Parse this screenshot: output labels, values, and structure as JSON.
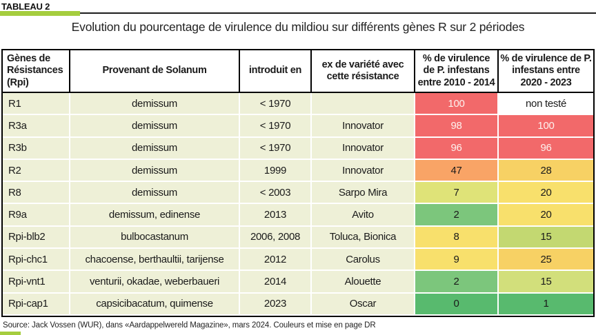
{
  "tag": "TABLEAU 2",
  "title": "Evolution du pourcentage de virulence du mildiou sur différents gènes R sur 2 périodes",
  "footer": "Source: Jack Vossen (WUR), dans «Aardappelwereld Magazine», mars 2024. Couleurs et mise en page DR",
  "colors": {
    "accent_green": "#a5cd3e",
    "row_bg": "#eef0d7",
    "rule_black": "#1c1c1c",
    "scale_red": "#f2696a",
    "scale_orange": "#f9a466",
    "scale_gold": "#f7d164",
    "scale_yellow": "#f8e06c",
    "scale_yellow_green": "#dfe378",
    "scale_green_light": "#7cc67c",
    "scale_green": "#58ba6e"
  },
  "table": {
    "headers": [
      {
        "label": "Gènes de Résistances (Rpi)"
      },
      {
        "label": "Provenant de Solanum"
      },
      {
        "label": "introduit en"
      },
      {
        "label": "ex de variété avec cette résistance"
      },
      {
        "label": "% de virulence de P. infestans entre 2010 - 2014"
      },
      {
        "label": "% de virulence de P. infestans entre 2020 - 2023"
      }
    ],
    "rows": [
      {
        "gene": "R1",
        "solanum": "demissum",
        "introduced": "< 1970",
        "variety": "",
        "v2010": {
          "text": "100",
          "bg": "#f2696a",
          "fg": "#fdf2ee"
        },
        "v2020": {
          "text": "non testé",
          "bg": "#ffffff",
          "fg": "#1a1a1a"
        }
      },
      {
        "gene": "R3a",
        "solanum": "demissum",
        "introduced": "< 1970",
        "variety": "Innovator",
        "v2010": {
          "text": "98",
          "bg": "#f2696a",
          "fg": "#fdf2ee"
        },
        "v2020": {
          "text": "100",
          "bg": "#f2696a",
          "fg": "#fdf2ee"
        }
      },
      {
        "gene": "R3b",
        "solanum": "demissum",
        "introduced": "< 1970",
        "variety": "Innovator",
        "v2010": {
          "text": "96",
          "bg": "#f2696a",
          "fg": "#fdf2ee"
        },
        "v2020": {
          "text": "96",
          "bg": "#f2696a",
          "fg": "#fdf2ee"
        }
      },
      {
        "gene": "R2",
        "solanum": "demissum",
        "introduced": "1999",
        "variety": "Innovator",
        "v2010": {
          "text": "47",
          "bg": "#f9a466",
          "fg": "#1a1a1a"
        },
        "v2020": {
          "text": "28",
          "bg": "#f7d164",
          "fg": "#1a1a1a"
        }
      },
      {
        "gene": "R8",
        "solanum": "demissum",
        "introduced": "< 2003",
        "variety": "Sarpo Mira",
        "v2010": {
          "text": "7",
          "bg": "#dfe378",
          "fg": "#1a1a1a"
        },
        "v2020": {
          "text": "20",
          "bg": "#f8e06c",
          "fg": "#1a1a1a"
        }
      },
      {
        "gene": "R9a",
        "solanum": "demissum, edinense",
        "introduced": "2013",
        "variety": "Avito",
        "v2010": {
          "text": "2",
          "bg": "#7cc67c",
          "fg": "#1a1a1a"
        },
        "v2020": {
          "text": "20",
          "bg": "#f8e06c",
          "fg": "#1a1a1a"
        }
      },
      {
        "gene": "Rpi-blb2",
        "solanum": "bulbocastanum",
        "introduced": "2006, 2008",
        "variety": "Toluca, Bionica",
        "v2010": {
          "text": "8",
          "bg": "#f8e06c",
          "fg": "#1a1a1a"
        },
        "v2020": {
          "text": "15",
          "bg": "#c3d871",
          "fg": "#1a1a1a"
        }
      },
      {
        "gene": "Rpi-chc1",
        "solanum": "chacoense, berthaultii, tarijense",
        "introduced": "2012",
        "variety": "Carolus",
        "v2010": {
          "text": "9",
          "bg": "#f8e06c",
          "fg": "#1a1a1a"
        },
        "v2020": {
          "text": "25",
          "bg": "#f7d164",
          "fg": "#1a1a1a"
        }
      },
      {
        "gene": "Rpi-vnt1",
        "solanum": "venturii, okadae, weberbaueri",
        "introduced": "2014",
        "variety": "Alouette",
        "v2010": {
          "text": "2",
          "bg": "#7cc67c",
          "fg": "#1a1a1a"
        },
        "v2020": {
          "text": "15",
          "bg": "#d2df7b",
          "fg": "#1a1a1a"
        }
      },
      {
        "gene": "Rpi-cap1",
        "solanum": "capsicibacatum, quimense",
        "introduced": "2023",
        "variety": "Oscar",
        "v2010": {
          "text": "0",
          "bg": "#58ba6e",
          "fg": "#1a1a1a"
        },
        "v2020": {
          "text": "1",
          "bg": "#58ba6e",
          "fg": "#1a1a1a"
        }
      }
    ]
  }
}
